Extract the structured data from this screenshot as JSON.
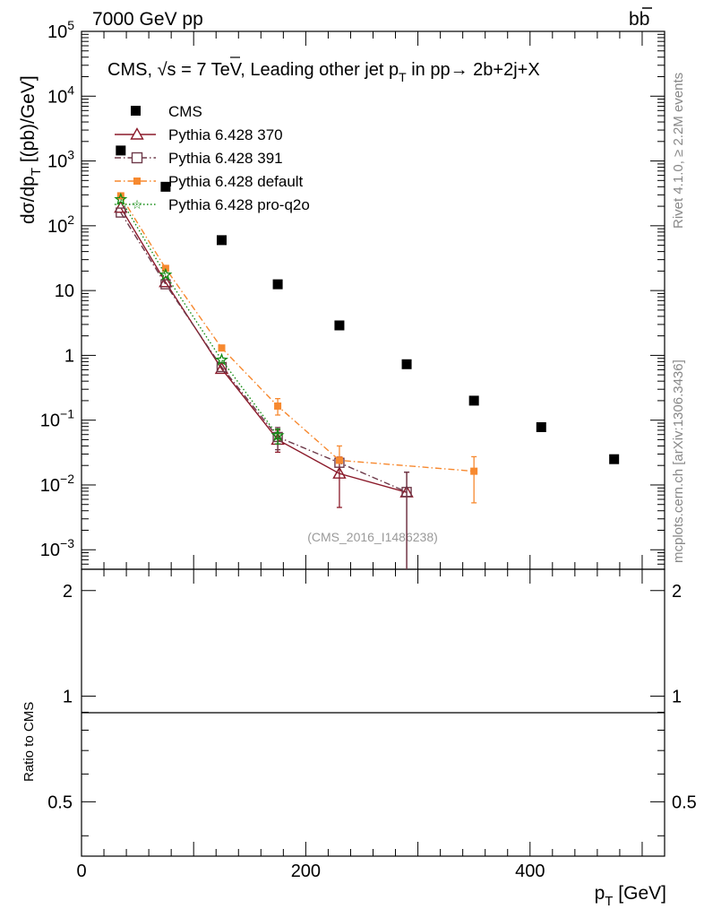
{
  "header": {
    "left": "7000 GeV pp",
    "right_prefix": "b",
    "right_bar": "b"
  },
  "title": {
    "prefix": "CMS, ",
    "sqrt": "√",
    "s": "s",
    "mid": " = 7 TeV, Leading other jet p",
    "sub": "T",
    "tail": " in pp",
    "arrow": "→",
    "proc": "  2b+2j+X"
  },
  "side_labels": {
    "rivet": "Rivet 4.1.0, ≥ 2.2M events",
    "mcplots": "mcplots.cern.ch [arXiv:1306.3436]"
  },
  "watermark": "(CMS_2016_I1486238)",
  "axes": {
    "ylabel_main": "dσ/dp",
    "ylabel_sub": "T",
    "ylabel_unit": " [(pb)/GeV]",
    "ylabel_ratio": "Ratio to CMS",
    "xlabel": "p",
    "xlabel_sub": "T",
    "xlabel_unit": " [GeV]",
    "xticks": [
      "0",
      "200",
      "400"
    ],
    "ratio_ticks": [
      "2",
      "1",
      "0.5"
    ]
  },
  "legend": {
    "entries": [
      {
        "label": "CMS",
        "color": "#000000"
      },
      {
        "label": "Pythia 6.428 370",
        "color": "#8b1a2a"
      },
      {
        "label": "Pythia 6.428 391",
        "color": "#6e3a4a"
      },
      {
        "label": "Pythia 6.428 default",
        "color": "#f7892f"
      },
      {
        "label": "Pythia 6.428 pro-q2o",
        "color": "#148c14"
      }
    ]
  },
  "chart_data": {
    "type": "scatter",
    "title": "CMS, √s = 7 TeV, Leading other jet pT in pp → 2b+2j+X",
    "xlabel": "pT [GeV]",
    "ylabel": "dσ/dpT [(pb)/GeV]",
    "xlim": [
      0,
      520
    ],
    "ylim": [
      0.0005,
      100000
    ],
    "yscale": "log",
    "ratio_ylim": [
      0.35,
      2.3
    ],
    "ytick_values": [
      0.001,
      0.01,
      0.1,
      1,
      10,
      100,
      1000,
      10000,
      100000
    ],
    "ytick_labels": [
      {
        "b": "10",
        "e": "−3"
      },
      {
        "b": "10",
        "e": "−2"
      },
      {
        "b": "10",
        "e": "−1"
      },
      {
        "b": "1",
        "e": ""
      },
      {
        "b": "10",
        "e": ""
      },
      {
        "b": "10",
        "e": "2"
      },
      {
        "b": "10",
        "e": "3"
      },
      {
        "b": "10",
        "e": "4"
      },
      {
        "b": "10",
        "e": "5"
      }
    ],
    "xtick_values": [
      0,
      200,
      400
    ],
    "ratio_tick_values": [
      2,
      1,
      0.5
    ],
    "series": [
      {
        "name": "CMS",
        "style": "data",
        "color": "#000000",
        "x": [
          35,
          75,
          125,
          175,
          230,
          290,
          350,
          410,
          475
        ],
        "y": [
          1450,
          400,
          60,
          12.5,
          2.9,
          0.73,
          0.2,
          0.078,
          0.025
        ]
      },
      {
        "name": "Pythia 6.428 370",
        "style": "solid",
        "marker": "triangle",
        "color": "#8b1a2a",
        "x": [
          35,
          75,
          125,
          175,
          230,
          290
        ],
        "y": [
          190,
          13.5,
          0.62,
          0.05,
          0.015,
          0.0077
        ],
        "err_low": [
          0,
          0,
          0,
          0.018,
          0.0105,
          0.0075
        ],
        "err_high": [
          0,
          0,
          0,
          0.02,
          0.012,
          0.008
        ]
      },
      {
        "name": "Pythia 6.428 391",
        "style": "dashdot",
        "marker": "square",
        "color": "#6e3a4a",
        "x": [
          35,
          75,
          125,
          175,
          230,
          290
        ],
        "y": [
          160,
          12.5,
          0.66,
          0.055,
          0.022,
          0.0078
        ],
        "err_low": [
          0,
          0,
          0,
          0.02,
          0,
          0.0075
        ],
        "err_high": [
          0,
          0,
          0,
          0.022,
          0,
          0.008
        ]
      },
      {
        "name": "Pythia 6.428 default",
        "style": "dashdot2",
        "marker": "filledsquare",
        "color": "#f7892f",
        "x": [
          35,
          75,
          125,
          175,
          230,
          350
        ],
        "y": [
          290,
          22,
          1.3,
          0.165,
          0.024,
          0.0163
        ],
        "err_low": [
          0,
          0,
          0,
          0.045,
          0,
          0.011
        ],
        "err_high": [
          0,
          0,
          0,
          0.05,
          0.016,
          0.011
        ]
      },
      {
        "name": "Pythia 6.428 pro-q2o",
        "style": "dotted",
        "marker": "star",
        "color": "#148c14",
        "x": [
          35,
          75,
          125,
          175
        ],
        "y": [
          255,
          17.5,
          0.85,
          0.058
        ],
        "err_low": [
          0,
          0,
          0,
          0.015
        ],
        "err_high": [
          0,
          0,
          0,
          0.015
        ]
      }
    ]
  }
}
